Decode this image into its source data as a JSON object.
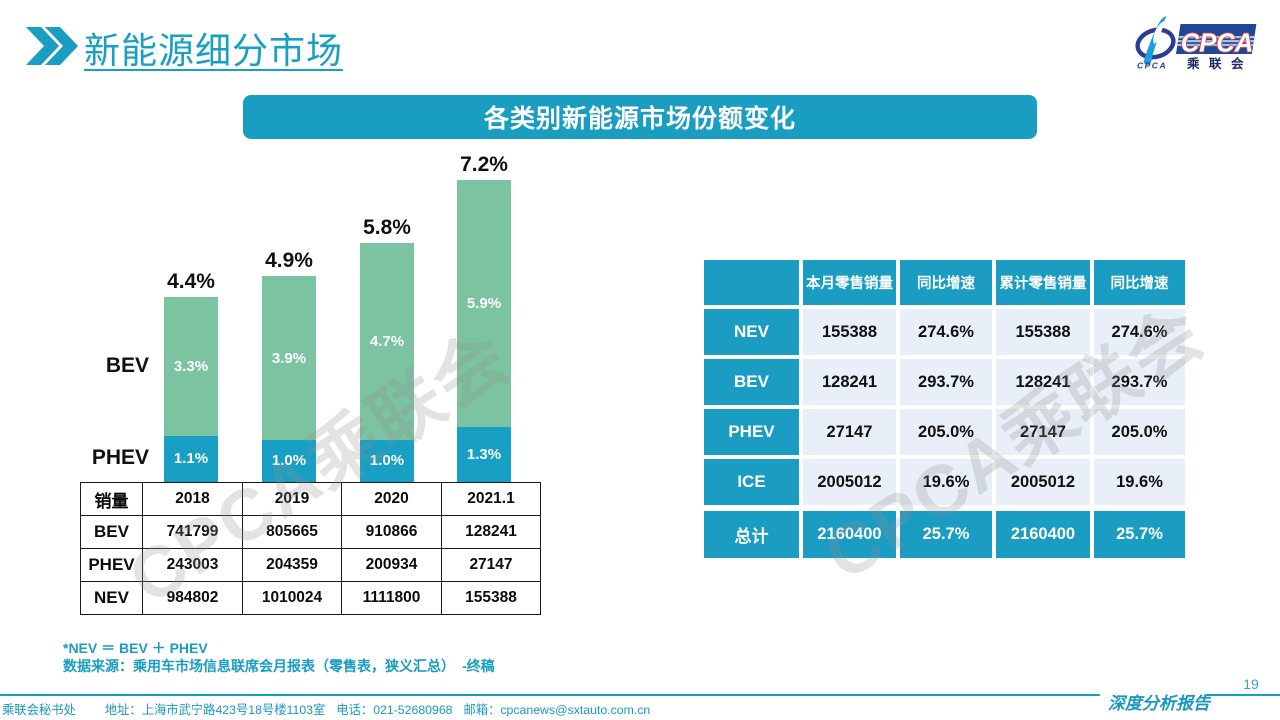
{
  "page": {
    "title": "新能源细分市场",
    "page_number": "19"
  },
  "logo": {
    "main_text": "CPCA",
    "sub_text": "乘联会",
    "small_text": "CPCA"
  },
  "banner": {
    "title": "各类别新能源市场份额变化"
  },
  "chart_data": {
    "type": "bar",
    "stacked": true,
    "title": "各类别新能源市场份额变化",
    "categories": [
      "2018",
      "2019",
      "2020",
      "2021.1"
    ],
    "series": [
      {
        "name": "PHEV",
        "color": "#189fc4",
        "values": [
          1.1,
          1.0,
          1.0,
          1.3
        ],
        "labels": [
          "1.1%",
          "1.0%",
          "1.0%",
          "1.3%"
        ]
      },
      {
        "name": "BEV",
        "color": "#7cc3a2",
        "values": [
          3.3,
          3.9,
          4.7,
          5.9
        ],
        "labels": [
          "3.3%",
          "3.9%",
          "4.7%",
          "5.9%"
        ]
      }
    ],
    "totals": [
      "4.4%",
      "4.9%",
      "5.8%",
      "7.2%"
    ],
    "unit": "percent",
    "ylim": [
      0,
      7.2
    ],
    "grid": false,
    "legend_position": "left"
  },
  "sales_table": {
    "header": [
      "销量",
      "2018",
      "2019",
      "2020",
      "2021.1"
    ],
    "rows": [
      [
        "BEV",
        "741799",
        "805665",
        "910866",
        "128241"
      ],
      [
        "PHEV",
        "243003",
        "204359",
        "200934",
        "27147"
      ],
      [
        "NEV",
        "984802",
        "1010024",
        "1111800",
        "155388"
      ]
    ]
  },
  "notes": {
    "line1": "*NEV ＝ BEV ＋ PHEV",
    "line2": "数据来源：乘用车市场信息联席会月报表（零售表，狭义汇总）　-终稿"
  },
  "summary_table": {
    "header": [
      "",
      "本月零售销量",
      "同比增速",
      "累计零售销量",
      "同比增速"
    ],
    "rows": [
      [
        "NEV",
        "155388",
        "274.6%",
        "155388",
        "274.6%"
      ],
      [
        "BEV",
        "128241",
        "293.7%",
        "128241",
        "293.7%"
      ],
      [
        "PHEV",
        "27147",
        "205.0%",
        "27147",
        "205.0%"
      ],
      [
        "ICE",
        "2005012",
        "19.6%",
        "2005012",
        "19.6%"
      ]
    ],
    "total_row": [
      "总计",
      "2160400",
      "25.7%",
      "2160400",
      "25.7%"
    ]
  },
  "watermark": {
    "text": "CPCA乘联会"
  },
  "footer": {
    "items": [
      "乘联会秘书处",
      "地址：上海市武宁路423号18号楼1103室",
      "电话：021-52680968",
      "邮箱：cpcanews@sxtauto.com.cn"
    ],
    "report_label": "深度分析报告"
  },
  "colors": {
    "accent_teal": "#199dc1",
    "bar_green": "#7cc3a2",
    "bar_teal": "#189fc4",
    "cell_light_blue": "#e9eff8",
    "logo_navy": "#2b3c94",
    "logo_light_blue": "#1b9fe0",
    "logo_red_outline": "#e8474b"
  }
}
